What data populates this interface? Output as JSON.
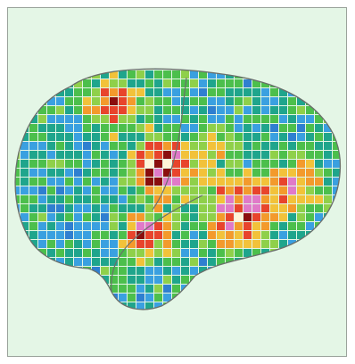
{
  "figure": {
    "subject": "brain-activity-map",
    "colors": {
      "background": "#e4f6e6",
      "outline": "#6a6f6b",
      "scale": [
        "#1f4fb0",
        "#2f7fd0",
        "#3aa0e0",
        "#1fa58c",
        "#4cbf4c",
        "#8fd04a",
        "#f2c23a",
        "#f39a2c",
        "#e8442c",
        "#e07ac8",
        "#8a0e0e",
        "#fff4d8"
      ]
    }
  }
}
